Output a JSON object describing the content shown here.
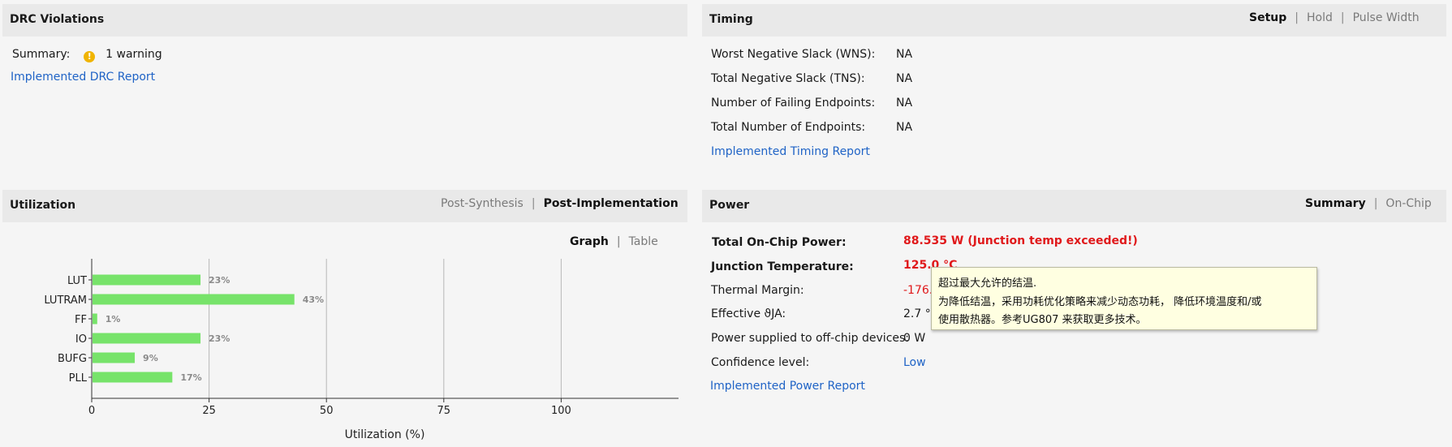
{
  "drc": {
    "title": "DRC Violations",
    "summary_label": "Summary:",
    "warning_icon": "!",
    "warning_text": "1 warning",
    "report_link": "Implemented DRC Report"
  },
  "timing": {
    "title": "Timing",
    "tabs": [
      "Setup",
      "Hold",
      "Pulse Width"
    ],
    "active_tab": "Setup",
    "rows": [
      {
        "label": "Worst Negative Slack (WNS):",
        "value": "NA"
      },
      {
        "label": "Total Negative Slack (TNS):",
        "value": "NA"
      },
      {
        "label": "Number of Failing Endpoints:",
        "value": "NA"
      },
      {
        "label": "Total Number of Endpoints:",
        "value": "NA"
      }
    ],
    "report_link": "Implemented Timing Report"
  },
  "utilization": {
    "title": "Utilization",
    "tabs": [
      "Post-Synthesis",
      "Post-Implementation"
    ],
    "active_tab": "Post-Implementation",
    "view_tabs": [
      "Graph",
      "Table"
    ],
    "active_view": "Graph"
  },
  "chart_data": {
    "type": "bar",
    "orientation": "horizontal",
    "categories": [
      "LUT",
      "LUTRAM",
      "FF",
      "IO",
      "BUFG",
      "PLL"
    ],
    "values": [
      23,
      43,
      1,
      23,
      9,
      17
    ],
    "data_labels": [
      "23%",
      "43%",
      "1%",
      "23%",
      "9%",
      "17%"
    ],
    "xlabel": "Utilization (%)",
    "xticks": [
      0,
      25,
      50,
      75,
      100
    ],
    "xlim": [
      0,
      125
    ],
    "grid": true,
    "bar_color": "#77e36a"
  },
  "power": {
    "title": "Power",
    "tabs": [
      "Summary",
      "On-Chip"
    ],
    "active_tab": "Summary",
    "rows": [
      {
        "label": "Total On-Chip Power:",
        "value": "88.535 W (Junction temp exceeded!)"
      },
      {
        "label": "Junction Temperature:",
        "value": "125.0 °C"
      },
      {
        "label": "Thermal Margin:",
        "value": "-176.9"
      },
      {
        "label": "Effective ϑJA:",
        "value": "2.7 °C"
      },
      {
        "label": "Power supplied to off-chip devices:",
        "value": "0 W"
      },
      {
        "label": "Confidence level:",
        "value": "Low"
      }
    ],
    "report_link": "Implemented Power Report",
    "alert_color": "#e0191b"
  },
  "tooltip": {
    "line1": "超过最大允许的结温.",
    "line2": "为降低结温，采用功耗优化策略来减少动态功耗， 降低环境温度和/或",
    "line3": "使用散热器。参考UG807 来获取更多技术。"
  }
}
